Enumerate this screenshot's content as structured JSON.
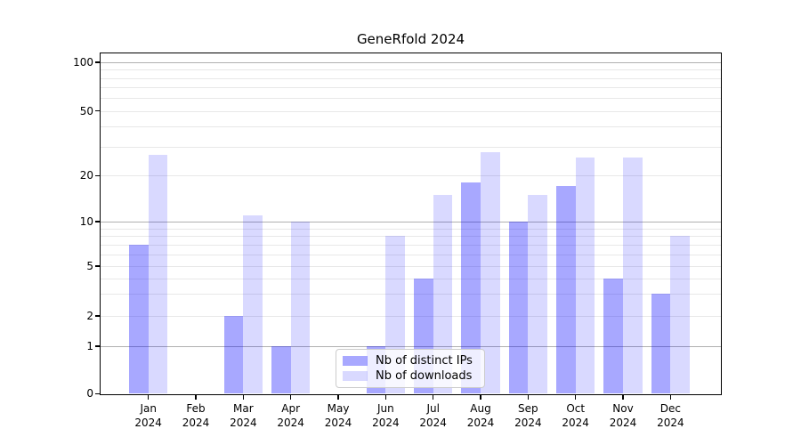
{
  "figure": {
    "title": "GeneRfold 2024"
  },
  "chart_data": {
    "type": "bar",
    "title": "GeneRfold 2024",
    "categories": [
      "Jan",
      "Feb",
      "Mar",
      "Apr",
      "May",
      "Jun",
      "Jul",
      "Aug",
      "Sep",
      "Oct",
      "Nov",
      "Dec"
    ],
    "category_year": "2024",
    "series": [
      {
        "name": "Nb of distinct IPs",
        "color": "rgba(0,0,255,0.34)",
        "values": [
          7,
          0,
          2,
          1,
          0,
          1,
          4,
          18,
          10,
          17,
          4,
          3
        ]
      },
      {
        "name": "Nb of downloads",
        "color": "rgba(0,0,255,0.15)",
        "values": [
          27,
          0,
          11,
          10,
          0,
          8,
          15,
          28,
          15,
          26,
          26,
          8
        ]
      }
    ],
    "xlabel": "",
    "ylabel": "",
    "yscale": "symlog",
    "ylim": [
      0,
      114
    ],
    "yticks": [
      0,
      1,
      2,
      5,
      10,
      20,
      50,
      100
    ],
    "grid": {
      "major_at": [
        1,
        10,
        100
      ],
      "minor_at": [
        2,
        3,
        4,
        5,
        6,
        7,
        8,
        9,
        20,
        30,
        40,
        50,
        60,
        70,
        80,
        90
      ],
      "major_color": "#b0b0b0",
      "minor_color": "#e8e8e8"
    },
    "legend_position": "lower-center"
  }
}
